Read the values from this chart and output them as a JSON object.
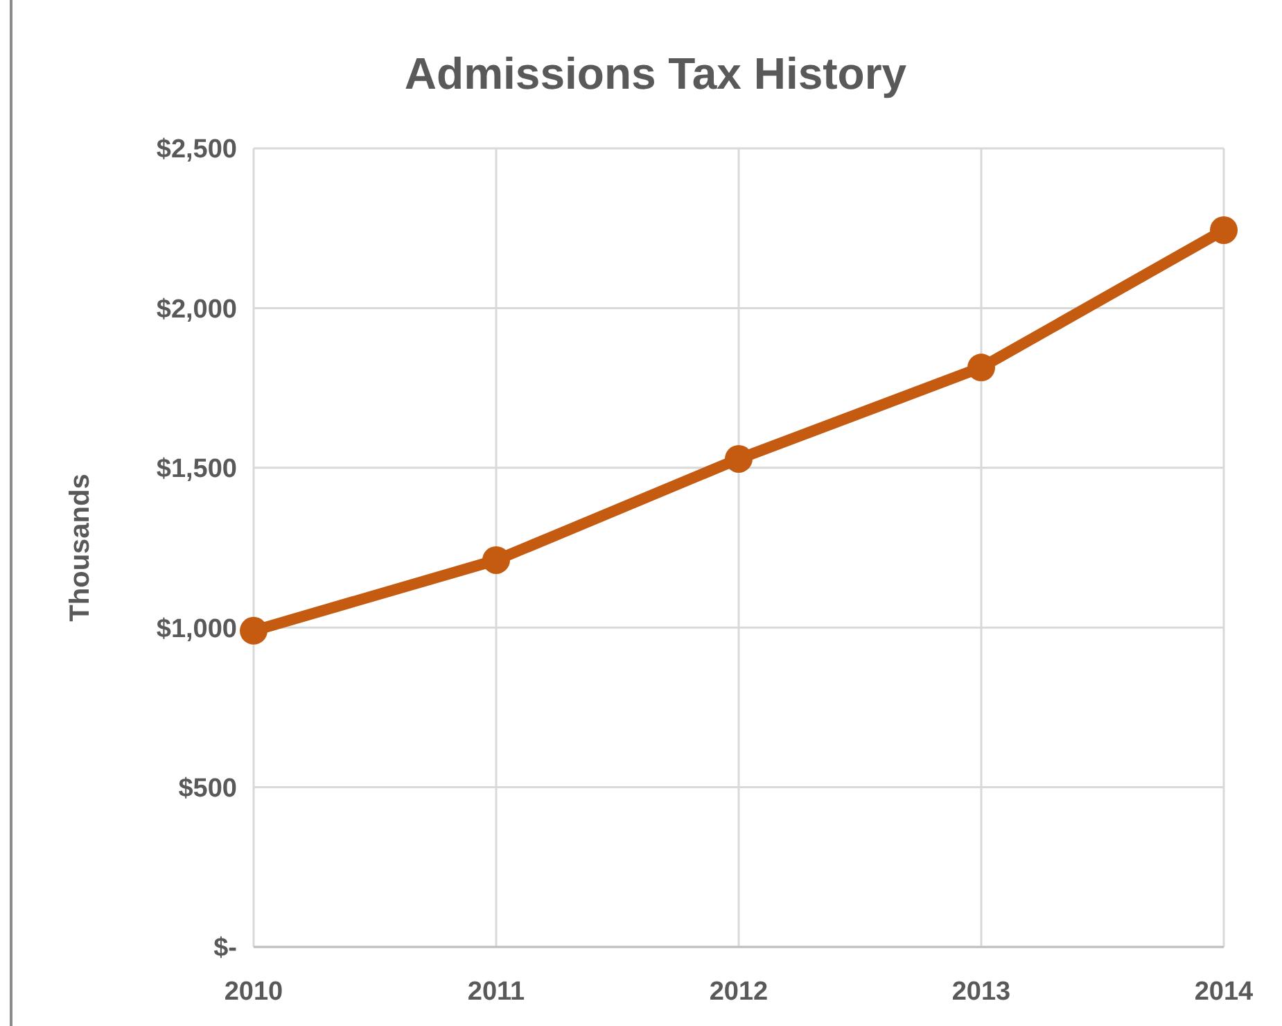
{
  "chart_data": {
    "type": "line",
    "title": "Admissions Tax History",
    "ylabel": "Thousands",
    "categories": [
      "2010",
      "2011",
      "2012",
      "2013",
      "2014"
    ],
    "series": [
      {
        "color": "#c55a11",
        "values": [
          990,
          1211,
          1528,
          1814,
          2244
        ]
      }
    ],
    "ylim": [
      0,
      2500
    ],
    "yticks": [
      {
        "value": 0,
        "label": "$-"
      },
      {
        "value": 500,
        "label": "$500"
      },
      {
        "value": 1000,
        "label": "$1,000"
      },
      {
        "value": 1500,
        "label": "$1,500"
      },
      {
        "value": 2000,
        "label": "$2,000"
      },
      {
        "value": 2500,
        "label": "$2,500"
      }
    ],
    "grid": true,
    "marker": "circle",
    "line_style": "solid"
  }
}
